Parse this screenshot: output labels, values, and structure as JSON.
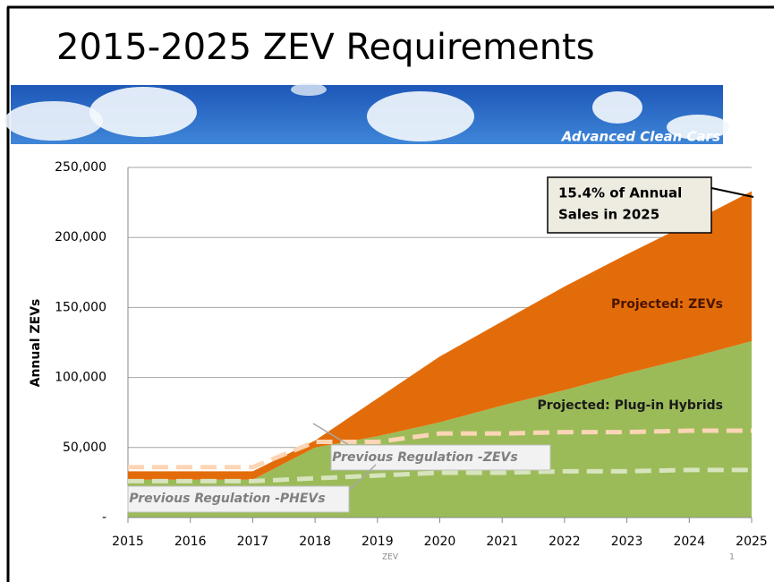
{
  "chart_data": {
    "type": "area",
    "stacked": true,
    "title": "2015-2025 ZEV Requirements",
    "y_label": "Annual ZEVs",
    "x": [
      2015,
      2016,
      2017,
      2018,
      2019,
      2020,
      2021,
      2022,
      2023,
      2024,
      2025
    ],
    "xlim": [
      2015,
      2025
    ],
    "xticks": [
      2015,
      2016,
      2017,
      2018,
      2019,
      2020,
      2021,
      2022,
      2023,
      2024,
      2025
    ],
    "ylim": [
      0,
      250000
    ],
    "yticks": [
      {
        "value": 0,
        "label": "-"
      },
      {
        "value": 50000,
        "label": "50,000"
      },
      {
        "value": 100000,
        "label": "100,000"
      },
      {
        "value": 150000,
        "label": "150,000"
      },
      {
        "value": 200000,
        "label": "200,000"
      },
      {
        "value": 250000,
        "label": "250,000"
      }
    ],
    "grid": true,
    "series": [
      {
        "name": "Projected: Plug-in Hybrids",
        "color": "#9bbb59",
        "kind": "area",
        "values": [
          27000,
          27000,
          27000,
          50000,
          58000,
          68000,
          80000,
          91000,
          103000,
          114000,
          126000
        ]
      },
      {
        "name": "Projected: ZEVs",
        "color": "#e36c0a",
        "kind": "area",
        "values": [
          6000,
          6000,
          6000,
          5000,
          27000,
          47000,
          60000,
          74000,
          85000,
          96000,
          107000
        ]
      },
      {
        "name": "Previous Regulation -ZEVs",
        "color": "#fbd5b5",
        "kind": "dashed-line",
        "values": [
          36000,
          36000,
          36000,
          54000,
          54000,
          60000,
          60000,
          61000,
          61000,
          62000,
          62000
        ]
      },
      {
        "name": "Previous Regulation -PHEVs",
        "color": "#d7e4bd",
        "kind": "dashed-line",
        "values": [
          26000,
          26000,
          26000,
          28000,
          30000,
          32000,
          32000,
          33000,
          33000,
          34000,
          34000
        ]
      }
    ],
    "annotations": [
      "15.4% of Annual",
      "Sales in 2025"
    ]
  },
  "banner_text": "Advanced Clean Cars",
  "footer": "ZEV",
  "page_number": "1"
}
